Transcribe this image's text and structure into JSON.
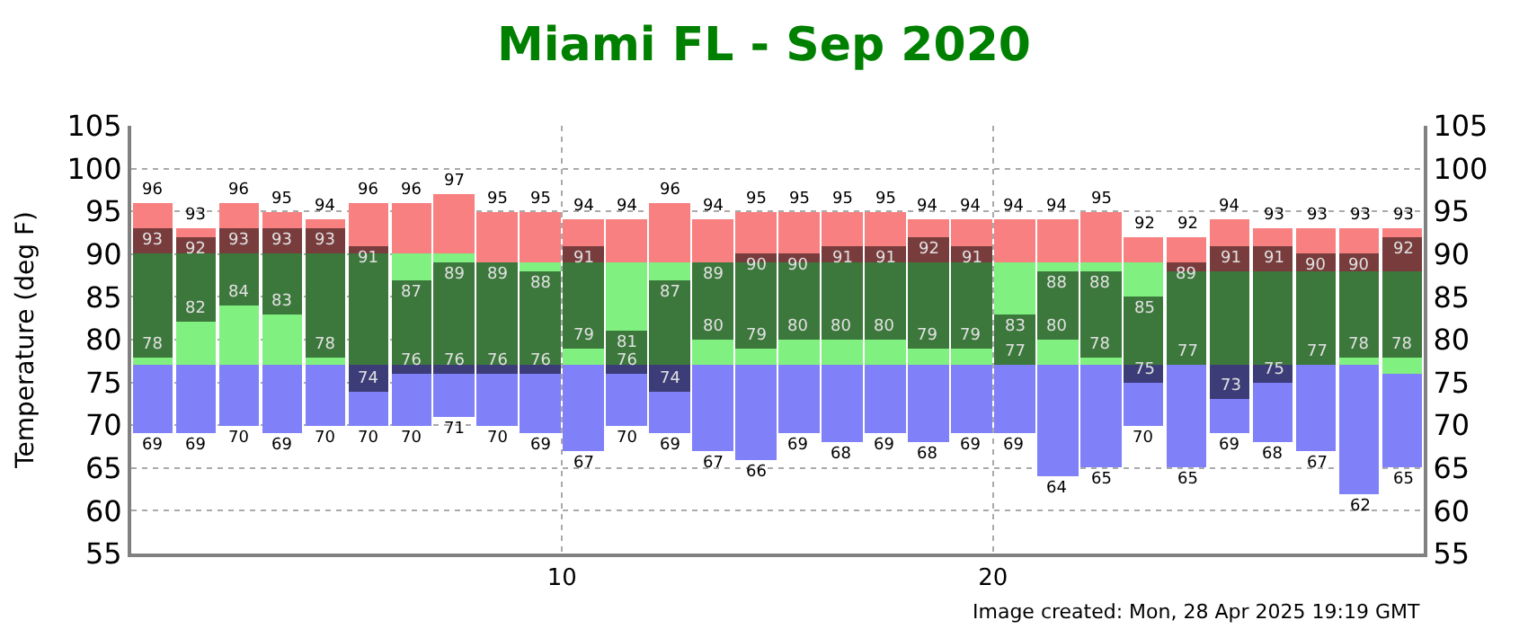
{
  "chart_data": {
    "type": "bar",
    "title": "Miami FL - Sep 2020",
    "ylabel": "Temperature (deg F)",
    "x": [
      0.5,
      1.5,
      2.5,
      3.5,
      4.5,
      5.5,
      6.5,
      7.5,
      8.5,
      9.5,
      10.5,
      11.5,
      12.5,
      13.5,
      14.5,
      15.5,
      16.5,
      17.5,
      18.5,
      19.5,
      20.5,
      21.5,
      22.5,
      23.5,
      24.5,
      25.5,
      26.5,
      27.5,
      28.5,
      29.5
    ],
    "xlim": [
      0,
      30
    ],
    "xticks": [
      10,
      20
    ],
    "ylim": [
      55,
      105
    ],
    "yticks": [
      55,
      60,
      65,
      70,
      75,
      80,
      85,
      90,
      95,
      100,
      105
    ],
    "y2lim": [
      55,
      105
    ],
    "y2ticks": [
      55,
      60,
      65,
      70,
      75,
      80,
      85,
      90,
      95,
      100,
      105
    ],
    "grid": true,
    "series": [
      {
        "color": "#8080f8",
        "base": [
          69,
          69,
          70,
          69,
          70,
          70,
          70,
          71,
          70,
          69,
          67,
          70,
          69,
          67,
          66,
          69,
          68,
          69,
          68,
          69,
          69,
          64,
          65,
          70,
          65,
          69,
          68,
          67,
          62,
          65
        ],
        "values": [
          8,
          8,
          7,
          8,
          7,
          4,
          6,
          5,
          6,
          7,
          10,
          6,
          5,
          10,
          11,
          8,
          9,
          8,
          9,
          8,
          8,
          13,
          12,
          5,
          12,
          4,
          7,
          10,
          15,
          11
        ]
      },
      {
        "color": "#3c3c78",
        "base": [
          null,
          null,
          null,
          null,
          null,
          74,
          76,
          76,
          76,
          76,
          null,
          76,
          74,
          null,
          null,
          null,
          null,
          null,
          null,
          null,
          null,
          null,
          null,
          75,
          null,
          73,
          75,
          null,
          null,
          null
        ],
        "values": [
          null,
          null,
          null,
          null,
          null,
          3,
          1,
          1,
          1,
          1,
          null,
          1,
          3,
          null,
          null,
          null,
          null,
          null,
          null,
          null,
          null,
          null,
          null,
          2,
          null,
          4,
          2,
          null,
          null,
          null
        ]
      },
      {
        "color": "#80f080",
        "base": [
          77,
          77,
          77,
          77,
          77,
          null,
          null,
          null,
          null,
          null,
          77,
          null,
          null,
          77,
          77,
          77,
          77,
          77,
          77,
          77,
          null,
          77,
          77,
          null,
          null,
          null,
          null,
          null,
          77,
          76
        ],
        "values": [
          1,
          5,
          7,
          6,
          1,
          null,
          null,
          null,
          null,
          null,
          2,
          null,
          null,
          3,
          2,
          3,
          3,
          3,
          2,
          2,
          null,
          3,
          1,
          null,
          null,
          null,
          null,
          null,
          1,
          2
        ]
      },
      {
        "color": "#3c783c",
        "base": [
          78,
          82,
          84,
          83,
          78,
          77,
          77,
          77,
          77,
          77,
          79,
          77,
          77,
          80,
          79,
          80,
          80,
          80,
          79,
          79,
          77,
          80,
          78,
          77,
          77,
          77,
          77,
          77,
          78,
          78
        ],
        "values": [
          12,
          8,
          6,
          7,
          12,
          13,
          10,
          12,
          12,
          11,
          10,
          4,
          10,
          9,
          10,
          9,
          9,
          9,
          10,
          10,
          6,
          8,
          10,
          8,
          11,
          11,
          11,
          11,
          10,
          10
        ]
      },
      {
        "color": "#80f080",
        "base": [
          null,
          null,
          null,
          null,
          null,
          null,
          87,
          89,
          null,
          88,
          null,
          81,
          87,
          null,
          null,
          null,
          null,
          null,
          null,
          null,
          83,
          88,
          88,
          85,
          null,
          null,
          null,
          null,
          null,
          null
        ],
        "values": [
          null,
          null,
          null,
          null,
          null,
          null,
          3,
          1,
          null,
          1,
          null,
          8,
          2,
          null,
          null,
          null,
          null,
          null,
          null,
          null,
          6,
          1,
          1,
          4,
          null,
          null,
          null,
          null,
          null,
          null
        ]
      },
      {
        "color": "#783c3c",
        "base": [
          90,
          90,
          90,
          90,
          90,
          90,
          null,
          null,
          null,
          null,
          89,
          null,
          null,
          null,
          89,
          89,
          89,
          89,
          89,
          89,
          null,
          null,
          null,
          null,
          88,
          88,
          88,
          88,
          88,
          88
        ],
        "values": [
          3,
          2,
          3,
          3,
          3,
          1,
          null,
          null,
          null,
          null,
          2,
          null,
          null,
          null,
          1,
          1,
          2,
          2,
          3,
          2,
          null,
          null,
          null,
          null,
          1,
          3,
          3,
          2,
          2,
          4
        ]
      },
      {
        "color": "#f88080",
        "base": [
          93,
          92,
          93,
          93,
          93,
          91,
          90,
          90,
          89,
          89,
          91,
          89,
          89,
          89,
          90,
          90,
          91,
          91,
          92,
          91,
          89,
          89,
          89,
          89,
          89,
          91,
          91,
          90,
          90,
          92
        ],
        "values": [
          3,
          1,
          3,
          2,
          1,
          5,
          6,
          7,
          6,
          6,
          3,
          5,
          7,
          5,
          5,
          5,
          4,
          4,
          2,
          3,
          5,
          5,
          6,
          3,
          3,
          3,
          2,
          3,
          3,
          1
        ]
      }
    ],
    "annotations": [
      {
        "text": "96",
        "x": 0.5,
        "y": 96
      },
      {
        "text": "93",
        "x": 0.5,
        "y": 93
      },
      {
        "text": "78",
        "x": 0.5,
        "y": 78
      },
      {
        "text": "69",
        "x": 0.5,
        "y": 69
      },
      {
        "text": "93",
        "x": 1.5,
        "y": 93
      },
      {
        "text": "92",
        "x": 1.5,
        "y": 92
      },
      {
        "text": "82",
        "x": 1.5,
        "y": 82
      },
      {
        "text": "69",
        "x": 1.5,
        "y": 69
      },
      {
        "text": "96",
        "x": 2.5,
        "y": 96
      },
      {
        "text": "93",
        "x": 2.5,
        "y": 93
      },
      {
        "text": "84",
        "x": 2.5,
        "y": 84
      },
      {
        "text": "70",
        "x": 2.5,
        "y": 70
      },
      {
        "text": "95",
        "x": 3.5,
        "y": 95
      },
      {
        "text": "93",
        "x": 3.5,
        "y": 93
      },
      {
        "text": "83",
        "x": 3.5,
        "y": 83
      },
      {
        "text": "69",
        "x": 3.5,
        "y": 69
      },
      {
        "text": "94",
        "x": 4.5,
        "y": 94
      },
      {
        "text": "93",
        "x": 4.5,
        "y": 93
      },
      {
        "text": "78",
        "x": 4.5,
        "y": 78
      },
      {
        "text": "70",
        "x": 4.5,
        "y": 70
      },
      {
        "text": "96",
        "x": 5.5,
        "y": 96
      },
      {
        "text": "91",
        "x": 5.5,
        "y": 91
      },
      {
        "text": "74",
        "x": 5.5,
        "y": 74
      },
      {
        "text": "70",
        "x": 5.5,
        "y": 70
      },
      {
        "text": "96",
        "x": 6.5,
        "y": 96
      },
      {
        "text": "87",
        "x": 6.5,
        "y": 87
      },
      {
        "text": "76",
        "x": 6.5,
        "y": 76
      },
      {
        "text": "70",
        "x": 6.5,
        "y": 70
      },
      {
        "text": "97",
        "x": 7.5,
        "y": 97
      },
      {
        "text": "89",
        "x": 7.5,
        "y": 89
      },
      {
        "text": "76",
        "x": 7.5,
        "y": 76
      },
      {
        "text": "71",
        "x": 7.5,
        "y": 71
      },
      {
        "text": "95",
        "x": 8.5,
        "y": 95
      },
      {
        "text": "89",
        "x": 8.5,
        "y": 89
      },
      {
        "text": "76",
        "x": 8.5,
        "y": 76
      },
      {
        "text": "70",
        "x": 8.5,
        "y": 70
      },
      {
        "text": "95",
        "x": 9.5,
        "y": 95
      },
      {
        "text": "88",
        "x": 9.5,
        "y": 88
      },
      {
        "text": "76",
        "x": 9.5,
        "y": 76
      },
      {
        "text": "69",
        "x": 9.5,
        "y": 69
      },
      {
        "text": "94",
        "x": 10.5,
        "y": 94
      },
      {
        "text": "91",
        "x": 10.5,
        "y": 91
      },
      {
        "text": "79",
        "x": 10.5,
        "y": 79
      },
      {
        "text": "67",
        "x": 10.5,
        "y": 67
      },
      {
        "text": "94",
        "x": 11.5,
        "y": 94
      },
      {
        "text": "81",
        "x": 11.5,
        "y": 81
      },
      {
        "text": "76",
        "x": 11.5,
        "y": 76
      },
      {
        "text": "70",
        "x": 11.5,
        "y": 70
      },
      {
        "text": "96",
        "x": 12.5,
        "y": 96
      },
      {
        "text": "87",
        "x": 12.5,
        "y": 87
      },
      {
        "text": "74",
        "x": 12.5,
        "y": 74
      },
      {
        "text": "69",
        "x": 12.5,
        "y": 69
      },
      {
        "text": "94",
        "x": 13.5,
        "y": 94
      },
      {
        "text": "89",
        "x": 13.5,
        "y": 89
      },
      {
        "text": "80",
        "x": 13.5,
        "y": 80
      },
      {
        "text": "67",
        "x": 13.5,
        "y": 67
      },
      {
        "text": "95",
        "x": 14.5,
        "y": 95
      },
      {
        "text": "90",
        "x": 14.5,
        "y": 90
      },
      {
        "text": "79",
        "x": 14.5,
        "y": 79
      },
      {
        "text": "66",
        "x": 14.5,
        "y": 66
      },
      {
        "text": "95",
        "x": 15.5,
        "y": 95
      },
      {
        "text": "90",
        "x": 15.5,
        "y": 90
      },
      {
        "text": "80",
        "x": 15.5,
        "y": 80
      },
      {
        "text": "69",
        "x": 15.5,
        "y": 69
      },
      {
        "text": "95",
        "x": 16.5,
        "y": 95
      },
      {
        "text": "91",
        "x": 16.5,
        "y": 91
      },
      {
        "text": "80",
        "x": 16.5,
        "y": 80
      },
      {
        "text": "68",
        "x": 16.5,
        "y": 68
      },
      {
        "text": "95",
        "x": 17.5,
        "y": 95
      },
      {
        "text": "91",
        "x": 17.5,
        "y": 91
      },
      {
        "text": "80",
        "x": 17.5,
        "y": 80
      },
      {
        "text": "69",
        "x": 17.5,
        "y": 69
      },
      {
        "text": "94",
        "x": 18.5,
        "y": 94
      },
      {
        "text": "92",
        "x": 18.5,
        "y": 92
      },
      {
        "text": "79",
        "x": 18.5,
        "y": 79
      },
      {
        "text": "68",
        "x": 18.5,
        "y": 68
      },
      {
        "text": "94",
        "x": 19.5,
        "y": 94
      },
      {
        "text": "91",
        "x": 19.5,
        "y": 91
      },
      {
        "text": "79",
        "x": 19.5,
        "y": 79
      },
      {
        "text": "69",
        "x": 19.5,
        "y": 69
      },
      {
        "text": "94",
        "x": 20.5,
        "y": 94
      },
      {
        "text": "83",
        "x": 20.5,
        "y": 83
      },
      {
        "text": "77",
        "x": 20.5,
        "y": 77
      },
      {
        "text": "69",
        "x": 20.5,
        "y": 69
      },
      {
        "text": "94",
        "x": 21.5,
        "y": 94
      },
      {
        "text": "88",
        "x": 21.5,
        "y": 88
      },
      {
        "text": "80",
        "x": 21.5,
        "y": 80
      },
      {
        "text": "64",
        "x": 21.5,
        "y": 64
      },
      {
        "text": "95",
        "x": 22.5,
        "y": 95
      },
      {
        "text": "88",
        "x": 22.5,
        "y": 88
      },
      {
        "text": "78",
        "x": 22.5,
        "y": 78
      },
      {
        "text": "65",
        "x": 22.5,
        "y": 65
      },
      {
        "text": "92",
        "x": 23.5,
        "y": 92
      },
      {
        "text": "85",
        "x": 23.5,
        "y": 85
      },
      {
        "text": "75",
        "x": 23.5,
        "y": 75
      },
      {
        "text": "70",
        "x": 23.5,
        "y": 70
      },
      {
        "text": "92",
        "x": 24.5,
        "y": 92
      },
      {
        "text": "89",
        "x": 24.5,
        "y": 89
      },
      {
        "text": "77",
        "x": 24.5,
        "y": 77
      },
      {
        "text": "65",
        "x": 24.5,
        "y": 65
      },
      {
        "text": "94",
        "x": 25.5,
        "y": 94
      },
      {
        "text": "91",
        "x": 25.5,
        "y": 91
      },
      {
        "text": "73",
        "x": 25.5,
        "y": 73
      },
      {
        "text": "69",
        "x": 25.5,
        "y": 69
      },
      {
        "text": "93",
        "x": 26.5,
        "y": 93
      },
      {
        "text": "91",
        "x": 26.5,
        "y": 91
      },
      {
        "text": "75",
        "x": 26.5,
        "y": 75
      },
      {
        "text": "68",
        "x": 26.5,
        "y": 68
      },
      {
        "text": "93",
        "x": 27.5,
        "y": 93
      },
      {
        "text": "90",
        "x": 27.5,
        "y": 90
      },
      {
        "text": "77",
        "x": 27.5,
        "y": 77
      },
      {
        "text": "67",
        "x": 27.5,
        "y": 67
      },
      {
        "text": "93",
        "x": 28.5,
        "y": 93
      },
      {
        "text": "90",
        "x": 28.5,
        "y": 90
      },
      {
        "text": "78",
        "x": 28.5,
        "y": 78
      },
      {
        "text": "62",
        "x": 28.5,
        "y": 62
      },
      {
        "text": "93",
        "x": 29.5,
        "y": 93
      },
      {
        "text": "92",
        "x": 29.5,
        "y": 92
      },
      {
        "text": "78",
        "x": 29.5,
        "y": 78
      },
      {
        "text": "65",
        "x": 29.5,
        "y": 65
      },
      "Image created: Mon, 28 Apr 2025 19:19 GMT"
    ]
  }
}
